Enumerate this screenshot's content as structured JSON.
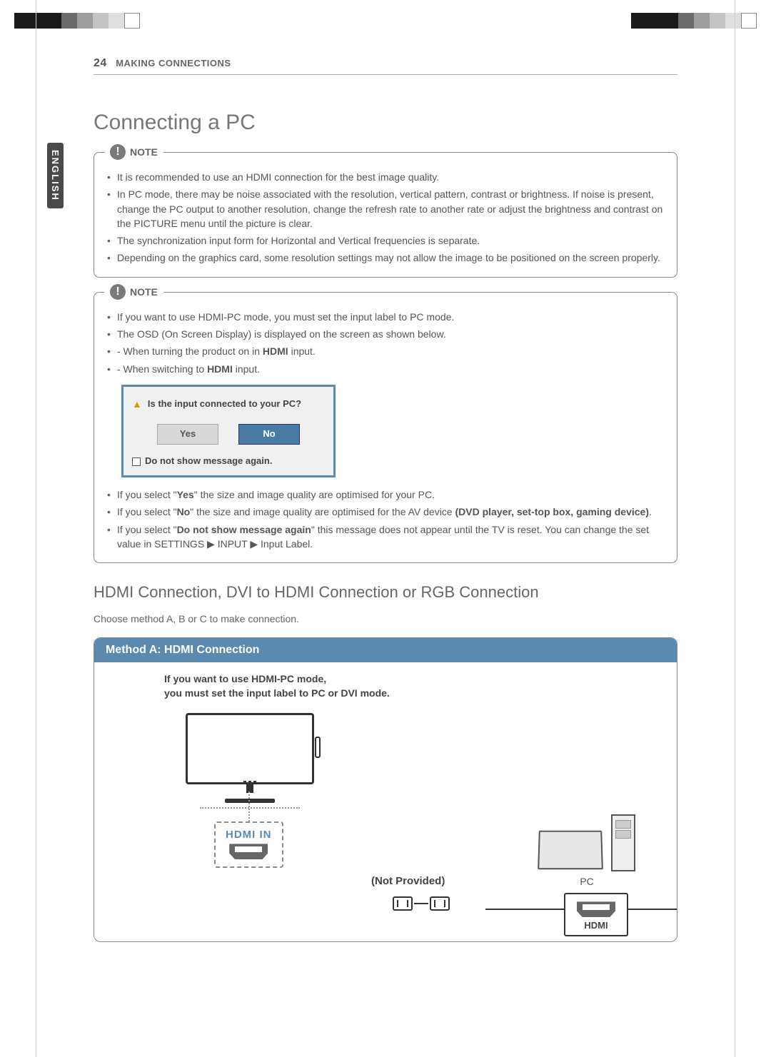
{
  "header": {
    "page_number": "24",
    "section": "MAKING CONNECTIONS"
  },
  "side_language": "ENGLISH",
  "title": "Connecting a PC",
  "note1": {
    "label": "NOTE",
    "items": [
      "It is recommended to use an HDMI connection for the best image quality.",
      "In PC mode, there may be noise associated with the resolution, vertical pattern, contrast or brightness. If noise is present, change the PC output to another resolution, change the refresh rate to another rate or adjust the brightness and contrast on the PICTURE menu until the picture is clear.",
      "The synchronization input form for Horizontal and Vertical frequencies is separate.",
      "Depending on the graphics card, some resolution settings may not allow the image to be positioned on the screen properly."
    ]
  },
  "note2": {
    "label": "NOTE",
    "items_pre": [
      "If you want to use HDMI-PC mode, you must set the input label to PC mode.",
      "The OSD (On Screen Display) is displayed on the screen as shown below.",
      "- When turning the product on in HDMI input.",
      "- When switching to HDMI input."
    ],
    "osd": {
      "question": "Is the input connected to your PC?",
      "yes": "Yes",
      "no": "No",
      "checkbox": "Do not show message again."
    },
    "items_post": {
      "yes_line_pre": "If you select \"",
      "yes_word": "Yes",
      "yes_line_post": "\" the size and image quality are optimised for your PC.",
      "no_line_pre": "If you select \"",
      "no_word": "No",
      "no_line_post": "\" the size and image quality are optimised for the AV device ",
      "no_bold": "(DVD player, set-top box, gaming device)",
      "no_end": ".",
      "again_pre": "If you select \"",
      "again_word": "Do not show message again",
      "again_post": "\" this message does not appear until the TV is reset. You can change the set value in SETTINGS ▶ INPUT ▶ Input Label."
    }
  },
  "subtitle": "HDMI Connection, DVI to HDMI Connection or RGB Connection",
  "intro": "Choose method A, B or C to make connection.",
  "method_a": {
    "header": "Method A: HDMI Connection",
    "note_line1": "If you want to use HDMI-PC mode,",
    "note_line2": "you must set the input label to PC or DVI mode.",
    "hdmi_in": "HDMI IN",
    "not_provided": "(Not Provided)",
    "pc_label": "PC",
    "hdmi_out": "HDMI"
  },
  "colors": {
    "accent_blue": "#5a8ab0",
    "text_gray": "#555555",
    "border_gray": "#888888"
  }
}
